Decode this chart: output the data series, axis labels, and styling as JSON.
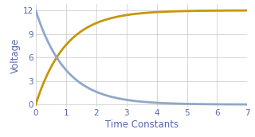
{
  "title": "",
  "xlabel": "Time Constants",
  "ylabel": "Voltage",
  "xlim": [
    0,
    7
  ],
  "ylim": [
    -0.3,
    12.8
  ],
  "xticks": [
    0,
    1,
    2,
    3,
    4,
    5,
    6,
    7
  ],
  "yticks": [
    0,
    3,
    6,
    9,
    12
  ],
  "V_max": 12,
  "t_start": 0,
  "t_end": 7,
  "charging_color": "#C8960C",
  "discharging_color": "#8FA8C8",
  "line_width": 2.0,
  "background_color": "#ffffff",
  "grid_color": "#d0d0d0",
  "label_fontsize": 8.5,
  "tick_fontsize": 7.5,
  "font_color": "#5566aa"
}
